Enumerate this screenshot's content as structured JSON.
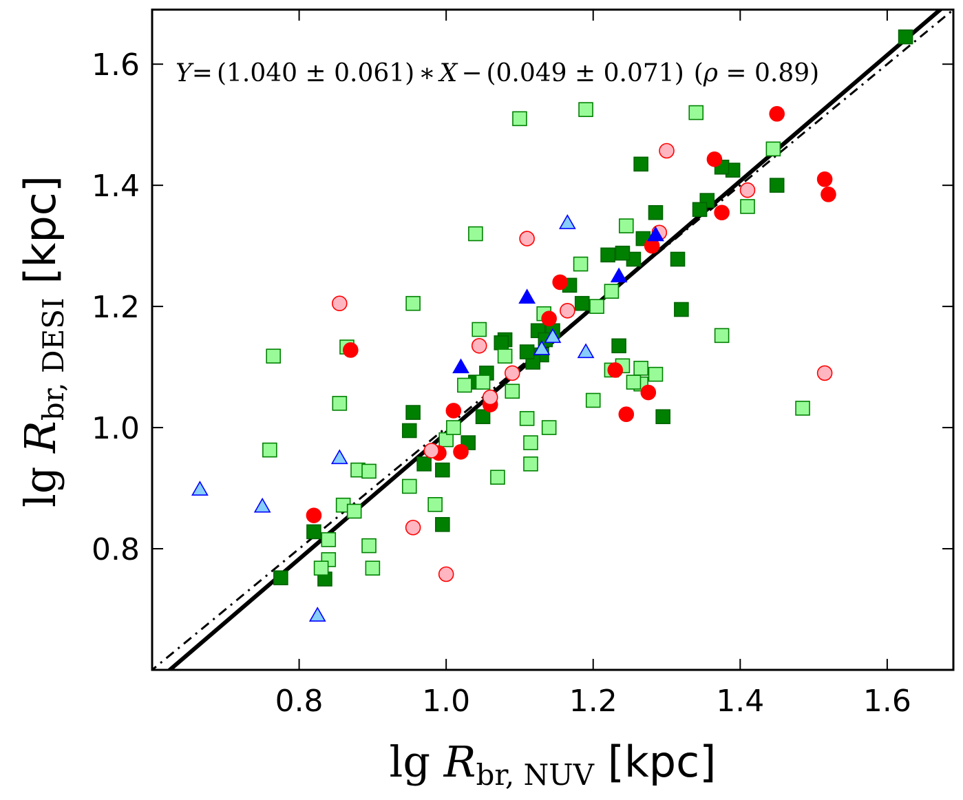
{
  "chart_data": {
    "type": "scatter",
    "title": "",
    "equation": {
      "y": "Y",
      "eq": "=",
      "paren1": "(1.040 ± 0.061)",
      "times": "∗",
      "x": "X",
      "minus": "−",
      "paren2": "(0.049 ± 0.071)",
      "rho_open": "(",
      "rho": "ρ",
      "rho_eq": " = 0.89)"
    },
    "xlabel": {
      "lg": "lg ",
      "R": "R",
      "sub": "br, NUV",
      "unit": " [kpc]"
    },
    "ylabel": {
      "lg": "lg ",
      "R": "R",
      "sub": "br, DESI",
      "unit": " [kpc]"
    },
    "xlim": [
      0.6,
      1.69
    ],
    "ylim": [
      0.6,
      1.69
    ],
    "xticks": [
      0.8,
      1.0,
      1.2,
      1.4,
      1.6
    ],
    "yticks": [
      0.8,
      1.0,
      1.2,
      1.4,
      1.6
    ],
    "xtick_labels": [
      "0.8",
      "1.0",
      "1.2",
      "1.4",
      "1.6"
    ],
    "ytick_labels": [
      "0.8",
      "1.0",
      "1.2",
      "1.4",
      "1.6"
    ],
    "fit_line": {
      "slope": 1.04,
      "intercept": -0.049,
      "style": "solid",
      "color": "#000000"
    },
    "identity_line": {
      "slope": 1.0,
      "intercept": 0.0,
      "style": "dash-dot",
      "color": "#000000"
    },
    "series": [
      {
        "name": "dark-green-squares",
        "marker": "square",
        "fill": "#008000",
        "edge": "#006400",
        "points": [
          [
            1.625,
            1.645
          ],
          [
            1.45,
            1.4
          ],
          [
            1.39,
            1.425
          ],
          [
            1.375,
            1.43
          ],
          [
            1.355,
            1.375
          ],
          [
            1.345,
            1.36
          ],
          [
            1.265,
            1.435
          ],
          [
            1.285,
            1.355
          ],
          [
            1.315,
            1.278
          ],
          [
            1.32,
            1.195
          ],
          [
            1.295,
            1.018
          ],
          [
            1.235,
            1.135
          ],
          [
            1.255,
            1.278
          ],
          [
            1.24,
            1.288
          ],
          [
            1.22,
            1.285
          ],
          [
            1.268,
            1.312
          ],
          [
            1.185,
            1.205
          ],
          [
            1.168,
            1.235
          ],
          [
            1.145,
            1.16
          ],
          [
            1.125,
            1.16
          ],
          [
            1.13,
            1.12
          ],
          [
            1.118,
            1.108
          ],
          [
            1.11,
            1.125
          ],
          [
            1.135,
            1.145
          ],
          [
            1.08,
            1.145
          ],
          [
            1.075,
            1.14
          ],
          [
            1.055,
            1.09
          ],
          [
            1.04,
            1.075
          ],
          [
            1.05,
            1.018
          ],
          [
            1.03,
            0.975
          ],
          [
            0.955,
            1.025
          ],
          [
            0.95,
            0.995
          ],
          [
            0.97,
            0.94
          ],
          [
            0.995,
            0.93
          ],
          [
            0.995,
            0.84
          ],
          [
            0.82,
            0.828
          ],
          [
            0.775,
            0.752
          ],
          [
            0.835,
            0.75
          ]
        ]
      },
      {
        "name": "light-green-squares",
        "marker": "square",
        "fill": "#98fb98",
        "edge": "#008000",
        "points": [
          [
            1.19,
            1.525
          ],
          [
            1.34,
            1.52
          ],
          [
            1.1,
            1.51
          ],
          [
            1.445,
            1.46
          ],
          [
            1.41,
            1.365
          ],
          [
            1.245,
            1.333
          ],
          [
            1.183,
            1.27
          ],
          [
            1.225,
            1.225
          ],
          [
            1.205,
            1.2
          ],
          [
            1.133,
            1.188
          ],
          [
            1.04,
            1.32
          ],
          [
            1.045,
            1.162
          ],
          [
            0.955,
            1.205
          ],
          [
            1.375,
            1.152
          ],
          [
            1.08,
            1.118
          ],
          [
            0.865,
            1.133
          ],
          [
            0.765,
            1.118
          ],
          [
            1.225,
            1.095
          ],
          [
            1.24,
            1.102
          ],
          [
            1.265,
            1.098
          ],
          [
            1.285,
            1.088
          ],
          [
            1.265,
            1.072
          ],
          [
            1.255,
            1.075
          ],
          [
            1.025,
            1.07
          ],
          [
            1.05,
            1.075
          ],
          [
            1.09,
            1.06
          ],
          [
            1.2,
            1.045
          ],
          [
            0.855,
            1.04
          ],
          [
            1.485,
            1.032
          ],
          [
            1.11,
            1.015
          ],
          [
            1.14,
            1.0
          ],
          [
            1.115,
            0.975
          ],
          [
            1.0,
            0.98
          ],
          [
            1.01,
            1.0
          ],
          [
            0.76,
            0.963
          ],
          [
            0.88,
            0.93
          ],
          [
            0.895,
            0.928
          ],
          [
            1.07,
            0.918
          ],
          [
            0.95,
            0.903
          ],
          [
            1.115,
            0.94
          ],
          [
            0.985,
            0.873
          ],
          [
            0.86,
            0.872
          ],
          [
            0.875,
            0.862
          ],
          [
            0.84,
            0.815
          ],
          [
            0.895,
            0.805
          ],
          [
            0.84,
            0.782
          ],
          [
            0.83,
            0.768
          ],
          [
            0.9,
            0.768
          ]
        ]
      },
      {
        "name": "red-circles",
        "marker": "circle",
        "fill": "#ff0000",
        "edge": "#ff0000",
        "points": [
          [
            1.45,
            1.518
          ],
          [
            1.365,
            1.443
          ],
          [
            1.515,
            1.41
          ],
          [
            1.52,
            1.385
          ],
          [
            1.375,
            1.355
          ],
          [
            1.28,
            1.3
          ],
          [
            1.155,
            1.24
          ],
          [
            1.14,
            1.18
          ],
          [
            1.23,
            1.095
          ],
          [
            1.275,
            1.058
          ],
          [
            1.245,
            1.022
          ],
          [
            1.06,
            1.038
          ],
          [
            1.01,
            1.028
          ],
          [
            0.87,
            1.128
          ],
          [
            0.99,
            0.958
          ],
          [
            1.02,
            0.96
          ],
          [
            0.82,
            0.855
          ]
        ]
      },
      {
        "name": "pink-circles",
        "marker": "circle",
        "fill": "#ffb6c1",
        "edge": "#ff0000",
        "points": [
          [
            1.3,
            1.457
          ],
          [
            1.41,
            1.392
          ],
          [
            1.29,
            1.322
          ],
          [
            1.11,
            1.312
          ],
          [
            1.165,
            1.193
          ],
          [
            0.855,
            1.205
          ],
          [
            1.045,
            1.135
          ],
          [
            1.09,
            1.09
          ],
          [
            1.06,
            1.05
          ],
          [
            1.515,
            1.09
          ],
          [
            0.98,
            0.962
          ],
          [
            0.955,
            0.835
          ],
          [
            1.0,
            0.758
          ]
        ]
      },
      {
        "name": "blue-triangles",
        "marker": "triangle",
        "fill": "#0000ff",
        "edge": "#0000ff",
        "points": [
          [
            1.235,
            1.25
          ],
          [
            1.11,
            1.215
          ],
          [
            1.02,
            1.1
          ],
          [
            1.285,
            1.318
          ]
        ]
      },
      {
        "name": "light-blue-triangles",
        "marker": "triangle",
        "fill": "#87cefa",
        "edge": "#0000ff",
        "points": [
          [
            1.165,
            1.338
          ],
          [
            1.19,
            1.125
          ],
          [
            1.145,
            1.15
          ],
          [
            1.13,
            1.13
          ],
          [
            0.665,
            0.898
          ],
          [
            0.75,
            0.87
          ],
          [
            0.855,
            0.95
          ],
          [
            0.825,
            0.69
          ]
        ]
      }
    ]
  }
}
